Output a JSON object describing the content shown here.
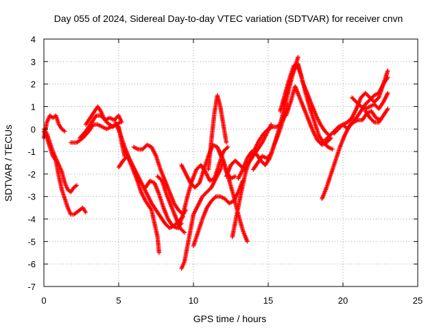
{
  "chart_data": {
    "type": "scatter",
    "title": "Day 055 of 2024, Sidereal Day-to-day VTEC variation (SDTVAR) for receiver cnvn",
    "xlabel": "GPS time / hours",
    "ylabel": "SDTVAR / TECUs",
    "xlim": [
      0,
      25
    ],
    "ylim": [
      -7,
      4
    ],
    "x_ticks": [
      0,
      5,
      10,
      15,
      20,
      25
    ],
    "y_ticks": [
      -7,
      -6,
      -5,
      -4,
      -3,
      -2,
      -1,
      0,
      1,
      2,
      3,
      4
    ],
    "grid": true,
    "marker": "+",
    "color": "#ff0000",
    "series": [
      {
        "x": [
          0.0,
          0.2,
          0.4,
          0.6,
          0.8,
          1.0,
          1.2,
          1.4
        ],
        "y": [
          -0.4,
          0.3,
          0.6,
          0.5,
          0.6,
          0.2,
          0.0,
          -0.1
        ]
      },
      {
        "x": [
          0.0,
          0.2,
          0.4,
          0.6,
          0.8,
          1.0,
          1.2,
          1.4,
          1.6,
          1.8,
          2.0,
          2.2
        ],
        "y": [
          0.0,
          -0.2,
          -0.6,
          -1.0,
          -1.3,
          -1.6,
          -1.9,
          -2.4,
          -2.7,
          -2.8,
          -2.6,
          -2.5
        ]
      },
      {
        "x": [
          0.0,
          0.2,
          0.4,
          0.6,
          0.8,
          1.0,
          1.2,
          1.4,
          1.6,
          1.8,
          2.0,
          2.2,
          2.4,
          2.6,
          2.8
        ],
        "y": [
          -0.1,
          -0.4,
          -0.8,
          -1.2,
          -1.4,
          -2.1,
          -2.7,
          -3.1,
          -3.5,
          -3.8,
          -3.8,
          -3.7,
          -3.6,
          -3.5,
          -3.7
        ]
      },
      {
        "x": [
          1.8,
          2.2,
          2.6,
          3.0,
          3.3,
          3.6,
          3.9,
          4.2,
          4.5,
          4.8,
          5.0,
          5.2,
          5.4
        ],
        "y": [
          -0.6,
          -0.6,
          -0.4,
          -0.1,
          0.2,
          0.2,
          0.1,
          0.0,
          0.1,
          0.2,
          0.1,
          -0.6,
          -1.2
        ]
      },
      {
        "x": [
          2.4,
          2.8,
          3.2,
          3.5,
          3.8,
          4.1,
          4.4,
          4.7,
          5.0,
          5.2
        ],
        "y": [
          -0.4,
          -0.1,
          0.3,
          0.6,
          0.6,
          0.4,
          0.5,
          0.4,
          0.6,
          0.3
        ]
      },
      {
        "x": [
          2.8,
          3.1,
          3.4,
          3.6,
          3.8,
          4.0,
          4.2,
          4.4,
          4.6,
          4.9,
          5.1
        ],
        "y": [
          0.2,
          0.5,
          0.8,
          1.0,
          0.8,
          0.5,
          0.3,
          0.2,
          0.1,
          0.2,
          0.3
        ]
      },
      {
        "x": [
          5.0,
          5.3,
          5.6,
          5.9,
          6.2,
          6.5,
          6.8,
          7.0,
          7.2,
          7.4,
          7.6,
          7.7
        ],
        "y": [
          -1.7,
          -1.4,
          -1.2,
          -1.7,
          -2.2,
          -2.8,
          -3.2,
          -3.4,
          -3.6,
          -4.2,
          -4.8,
          -5.5
        ]
      },
      {
        "x": [
          4.8,
          5.1,
          5.4,
          5.7,
          6.0,
          6.3,
          6.6,
          6.9,
          7.2,
          7.5,
          7.8,
          8.1,
          8.4,
          8.7,
          9.0,
          9.3
        ],
        "y": [
          0.3,
          -0.2,
          -0.8,
          -1.3,
          -1.7,
          -2.1,
          -2.5,
          -2.9,
          -3.3,
          -3.6,
          -3.9,
          -4.2,
          -4.4,
          -4.3,
          -4.1,
          -3.9
        ]
      },
      {
        "x": [
          6.0,
          6.3,
          6.6,
          6.9,
          7.2,
          7.5,
          7.8,
          8.1,
          8.4,
          8.7,
          9.0,
          9.3,
          9.5
        ],
        "y": [
          -0.8,
          -0.9,
          -0.9,
          -0.7,
          -0.8,
          -1.2,
          -1.8,
          -2.3,
          -2.8,
          -3.3,
          -3.6,
          -3.8,
          -3.6
        ]
      },
      {
        "x": [
          6.8,
          7.1,
          7.4,
          7.7,
          8.0,
          8.3,
          8.6,
          8.9,
          9.2
        ],
        "y": [
          -2.6,
          -2.3,
          -2.4,
          -2.9,
          -3.5,
          -4.0,
          -4.3,
          -4.4,
          -4.2
        ]
      },
      {
        "x": [
          7.6,
          7.9,
          8.2,
          8.5,
          8.8,
          9.1,
          9.4
        ],
        "y": [
          -2.1,
          -2.3,
          -2.9,
          -3.4,
          -3.9,
          -4.4,
          -4.6
        ]
      },
      {
        "x": [
          9.2,
          9.4,
          9.6,
          9.8,
          10.0,
          10.3,
          10.6,
          10.9,
          11.2,
          11.5,
          11.8,
          12.0
        ],
        "y": [
          -6.2,
          -5.9,
          -5.2,
          -4.5,
          -3.8,
          -3.4,
          -3.0,
          -2.8,
          -2.6,
          -2.2,
          -1.8,
          -1.4
        ]
      },
      {
        "x": [
          10.0,
          10.3,
          10.6,
          10.9,
          11.2,
          11.5,
          11.8,
          12.1,
          12.4,
          12.7,
          13.0,
          13.3
        ],
        "y": [
          -5.2,
          -4.6,
          -4.0,
          -3.5,
          -3.2,
          -3.0,
          -3.0,
          -3.1,
          -3.3,
          -3.2,
          -2.8,
          -2.3
        ]
      },
      {
        "x": [
          9.0,
          9.3,
          9.6,
          9.9,
          10.2,
          10.5,
          10.8,
          11.1,
          11.4,
          11.7,
          12.0,
          12.3
        ],
        "y": [
          -4.4,
          -3.8,
          -3.0,
          -2.3,
          -1.8,
          -1.6,
          -1.9,
          -2.3,
          -2.2,
          -1.6,
          -1.0,
          -0.8
        ]
      },
      {
        "x": [
          9.2,
          9.5,
          9.8,
          10.1,
          10.4,
          10.7,
          11.0,
          11.3,
          11.6,
          11.9,
          12.2,
          12.5,
          12.8
        ],
        "y": [
          -1.6,
          -2.0,
          -2.4,
          -2.6,
          -2.4,
          -1.8,
          -1.2,
          -0.7,
          -0.8,
          -1.3,
          -1.9,
          -2.2,
          -2.1
        ]
      },
      {
        "x": [
          11.0,
          11.2,
          11.4,
          11.6,
          11.8,
          12.0,
          12.2
        ],
        "y": [
          -1.8,
          -0.5,
          0.7,
          1.5,
          1.0,
          0.2,
          -0.6
        ]
      },
      {
        "x": [
          11.8,
          12.1,
          12.4,
          12.7,
          13.0,
          13.3,
          13.6
        ],
        "y": [
          -1.0,
          -1.6,
          -2.3,
          -3.0,
          -3.8,
          -4.5,
          -5.0
        ]
      },
      {
        "x": [
          12.6,
          12.9,
          13.2,
          13.5,
          13.8,
          14.1,
          14.4,
          14.7,
          15.0,
          15.3,
          15.6,
          15.9,
          16.2
        ],
        "y": [
          -4.8,
          -3.8,
          -2.8,
          -1.9,
          -1.3,
          -0.9,
          -0.5,
          -0.2,
          0.0,
          0.1,
          0.1,
          0.3,
          0.8
        ]
      },
      {
        "x": [
          12.2,
          12.5,
          12.8,
          13.1,
          13.4,
          13.7,
          14.0,
          14.3,
          14.6,
          14.9,
          15.2
        ],
        "y": [
          -2.1,
          -1.6,
          -1.4,
          -1.6,
          -1.8,
          -1.5,
          -1.2,
          -0.9,
          -0.6,
          -0.2,
          0.2
        ]
      },
      {
        "x": [
          13.0,
          13.3,
          13.6,
          13.9,
          14.2,
          14.5,
          14.8,
          15.1,
          15.4,
          15.7,
          16.0,
          16.3
        ],
        "y": [
          -2.2,
          -1.8,
          -1.3,
          -1.0,
          -1.1,
          -1.4,
          -1.6,
          -1.3,
          -0.7,
          -0.2,
          0.4,
          1.1
        ]
      },
      {
        "x": [
          14.0,
          14.3,
          14.6,
          14.9,
          15.2,
          15.5,
          15.8,
          16.1,
          16.4,
          16.7,
          17.0
        ],
        "y": [
          -1.8,
          -1.5,
          -1.2,
          -1.3,
          -1.1,
          -0.5,
          0.2,
          1.0,
          1.8,
          2.6,
          3.2
        ]
      },
      {
        "x": [
          15.8,
          16.1,
          16.4,
          16.7,
          17.0,
          17.3,
          17.6,
          17.9,
          18.2,
          18.5,
          18.8,
          19.1
        ],
        "y": [
          0.8,
          1.5,
          2.2,
          2.8,
          2.9,
          2.1,
          1.6,
          1.1,
          0.6,
          0.2,
          -0.1,
          -0.3
        ]
      },
      {
        "x": [
          16.0,
          16.3,
          16.6,
          16.9,
          17.2,
          17.5,
          17.8,
          18.1,
          18.4,
          18.7,
          19.0,
          19.3
        ],
        "y": [
          1.0,
          1.8,
          2.4,
          2.9,
          2.4,
          1.6,
          0.9,
          0.3,
          -0.3,
          -0.6,
          -0.8,
          -0.9
        ]
      },
      {
        "x": [
          16.2,
          16.5,
          16.8,
          17.1,
          17.4,
          17.7,
          18.0,
          18.3,
          18.6,
          18.9,
          19.2
        ],
        "y": [
          0.6,
          1.2,
          1.9,
          1.4,
          0.9,
          0.4,
          -0.1,
          -0.5,
          -0.7,
          -0.6,
          -0.4
        ]
      },
      {
        "x": [
          18.6,
          18.9,
          19.2,
          19.5,
          19.8,
          20.1,
          20.4,
          20.7,
          21.0,
          21.3,
          21.6,
          21.9,
          22.2,
          22.5
        ],
        "y": [
          -3.1,
          -2.6,
          -2.0,
          -1.4,
          -0.8,
          -0.3,
          0.1,
          0.3,
          0.4,
          0.4,
          0.7,
          0.8,
          0.5,
          0.4
        ]
      },
      {
        "x": [
          18.8,
          19.1,
          19.4,
          19.7,
          20.0,
          20.3,
          20.6,
          20.9,
          21.2,
          21.5,
          21.8,
          22.1,
          22.4,
          22.7,
          23.0
        ],
        "y": [
          -0.5,
          -0.3,
          -0.1,
          0.1,
          0.2,
          0.0,
          0.3,
          0.5,
          0.8,
          1.1,
          1.3,
          1.5,
          1.6,
          2.0,
          2.3
        ]
      },
      {
        "x": [
          19.4,
          19.7,
          20.0,
          20.3,
          20.6,
          20.9,
          21.2,
          21.5,
          21.8,
          22.1,
          22.4,
          22.7,
          23.0
        ],
        "y": [
          -0.2,
          0.0,
          0.2,
          0.3,
          0.5,
          0.9,
          1.4,
          1.6,
          1.4,
          1.2,
          1.4,
          2.0,
          2.6
        ]
      },
      {
        "x": [
          20.6,
          20.9,
          21.2,
          21.5,
          21.8,
          22.1,
          22.4,
          22.7,
          23.0
        ],
        "y": [
          1.4,
          1.2,
          1.0,
          0.9,
          1.0,
          1.1,
          0.9,
          1.2,
          1.6
        ]
      },
      {
        "x": [
          21.5,
          21.8,
          22.1,
          22.4,
          22.7,
          23.0
        ],
        "y": [
          0.8,
          0.5,
          0.3,
          0.3,
          0.6,
          0.9
        ]
      }
    ]
  }
}
